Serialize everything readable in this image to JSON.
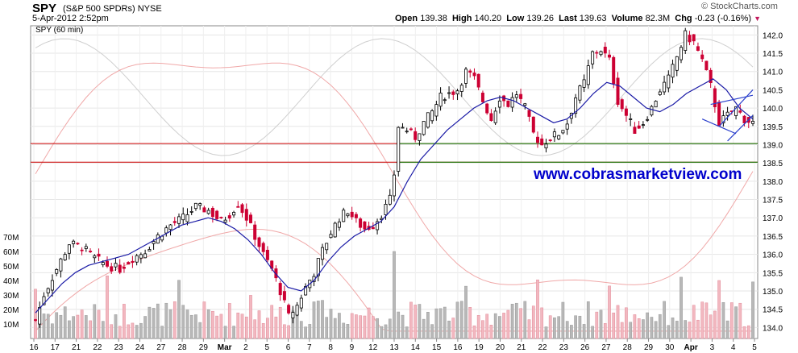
{
  "header": {
    "symbol": "SPY",
    "name": "(S&P 500 SPDRs)",
    "exchange": "NYSE",
    "date": "5-Apr-2012 2:52pm",
    "brand": "© StockCharts.com",
    "open_label": "Open",
    "open": "139.38",
    "high_label": "High",
    "high": "140.20",
    "low_label": "Low",
    "low": "139.26",
    "last_label": "Last",
    "last": "139.63",
    "volume_label": "Volume",
    "volume": "82.3M",
    "chg_label": "Chg",
    "chg": "-0.23 (-0.16%)"
  },
  "chart_data": {
    "type": "candlestick",
    "subtitle": "SPY (60 min)",
    "watermark": "www.cobrasmarketview.com",
    "price_axis": {
      "range": [
        133.7,
        142.25
      ],
      "ticks": [
        "142.0",
        "141.5",
        "141.0",
        "140.5",
        "140.0",
        "139.5",
        "139.0",
        "138.5",
        "138.0",
        "137.5",
        "137.0",
        "136.5",
        "136.0",
        "135.5",
        "135.0",
        "134.5",
        "134.0"
      ]
    },
    "volume_axis": {
      "range": [
        0,
        75
      ],
      "ticks": [
        "70M",
        "60M",
        "50M",
        "40M",
        "30M",
        "20M",
        "10M"
      ]
    },
    "x_axis": {
      "ticks": [
        "16",
        "17",
        "21",
        "22",
        "23",
        "24",
        "27",
        "28",
        "29",
        "Mar",
        "2",
        "5",
        "6",
        "7",
        "8",
        "9",
        "12",
        "13",
        "14",
        "15",
        "16",
        "19",
        "20",
        "21",
        "22",
        "23",
        "26",
        "27",
        "28",
        "29",
        "30",
        "Apr",
        "3",
        "4",
        "5"
      ]
    },
    "horizontal_lines": [
      {
        "value": 139.03,
        "color": "#cc0000"
      },
      {
        "value": 138.52,
        "color": "#cc0000"
      },
      {
        "value": 139.03,
        "color": "#008000"
      },
      {
        "value": 138.52,
        "color": "#008000"
      }
    ],
    "close_path": [
      [
        0,
        134.2
      ],
      [
        2,
        134.9
      ],
      [
        5,
        135.6
      ],
      [
        8,
        136.3
      ],
      [
        11,
        136.2
      ],
      [
        14,
        135.9
      ],
      [
        17,
        135.7
      ],
      [
        20,
        135.6
      ],
      [
        23,
        135.9
      ],
      [
        26,
        136.1
      ],
      [
        29,
        136.5
      ],
      [
        32,
        136.8
      ],
      [
        35,
        137.0
      ],
      [
        38,
        137.3
      ],
      [
        41,
        137.2
      ],
      [
        44,
        136.9
      ],
      [
        46,
        137.1
      ],
      [
        48,
        137.4
      ],
      [
        50,
        137.0
      ],
      [
        52,
        136.5
      ],
      [
        54,
        136.0
      ],
      [
        56,
        135.6
      ],
      [
        58,
        135.0
      ],
      [
        60,
        134.3
      ],
      [
        62,
        134.6
      ],
      [
        64,
        135.1
      ],
      [
        66,
        135.5
      ],
      [
        68,
        136.1
      ],
      [
        70,
        136.6
      ],
      [
        72,
        137.0
      ],
      [
        74,
        137.2
      ],
      [
        76,
        136.9
      ],
      [
        78,
        136.7
      ],
      [
        80,
        136.8
      ],
      [
        82,
        137.1
      ],
      [
        84,
        137.5
      ],
      [
        85,
        138.2
      ],
      [
        86,
        139.5
      ],
      [
        88,
        139.4
      ],
      [
        90,
        139.2
      ],
      [
        92,
        139.6
      ],
      [
        94,
        139.9
      ],
      [
        96,
        140.3
      ],
      [
        98,
        140.4
      ],
      [
        100,
        140.5
      ],
      [
        102,
        141.0
      ],
      [
        104,
        140.8
      ],
      [
        106,
        140.2
      ],
      [
        108,
        139.7
      ],
      [
        110,
        140.3
      ],
      [
        112,
        140.1
      ],
      [
        114,
        140.4
      ],
      [
        116,
        140.0
      ],
      [
        118,
        139.3
      ],
      [
        120,
        139.0
      ],
      [
        122,
        139.2
      ],
      [
        124,
        139.3
      ],
      [
        126,
        139.6
      ],
      [
        128,
        140.3
      ],
      [
        130,
        140.7
      ],
      [
        132,
        141.5
      ],
      [
        134,
        141.6
      ],
      [
        136,
        141.3
      ],
      [
        138,
        140.2
      ],
      [
        140,
        139.8
      ],
      [
        142,
        139.4
      ],
      [
        144,
        139.6
      ],
      [
        146,
        140.0
      ],
      [
        148,
        140.5
      ],
      [
        150,
        140.8
      ],
      [
        152,
        141.4
      ],
      [
        154,
        142.0
      ],
      [
        156,
        141.8
      ],
      [
        158,
        141.3
      ],
      [
        160,
        140.6
      ],
      [
        162,
        139.6
      ],
      [
        164,
        139.8
      ],
      [
        166,
        140.0
      ],
      [
        168,
        139.7
      ],
      [
        170,
        139.6
      ]
    ],
    "ma_values": [
      134.4,
      134.8,
      135.2,
      135.5,
      135.7,
      135.8,
      135.9,
      136.0,
      136.2,
      136.4,
      136.6,
      136.8,
      136.9,
      137.0,
      136.9,
      136.7,
      136.4,
      136.0,
      135.5,
      135.1,
      135.0,
      135.3,
      135.8,
      136.2,
      136.5,
      136.7,
      136.9,
      137.3,
      138.0,
      138.6,
      139.0,
      139.4,
      139.7,
      140.0,
      140.2,
      140.3,
      140.2,
      140.0,
      139.8,
      139.6,
      139.7,
      140.0,
      140.4,
      140.7,
      140.6,
      140.3,
      140.0,
      139.9,
      140.1,
      140.4,
      140.6,
      140.8,
      140.5,
      140.0,
      139.7
    ],
    "pattern_lines": [
      [
        [
          162,
          139.5
        ],
        [
          170,
          140.5
        ]
      ],
      [
        [
          164,
          139.1
        ],
        [
          170,
          139.8
        ]
      ],
      [
        [
          158,
          139.7
        ],
        [
          166,
          139.3
        ]
      ],
      [
        [
          160,
          140.1
        ],
        [
          170,
          140.35
        ]
      ]
    ]
  }
}
